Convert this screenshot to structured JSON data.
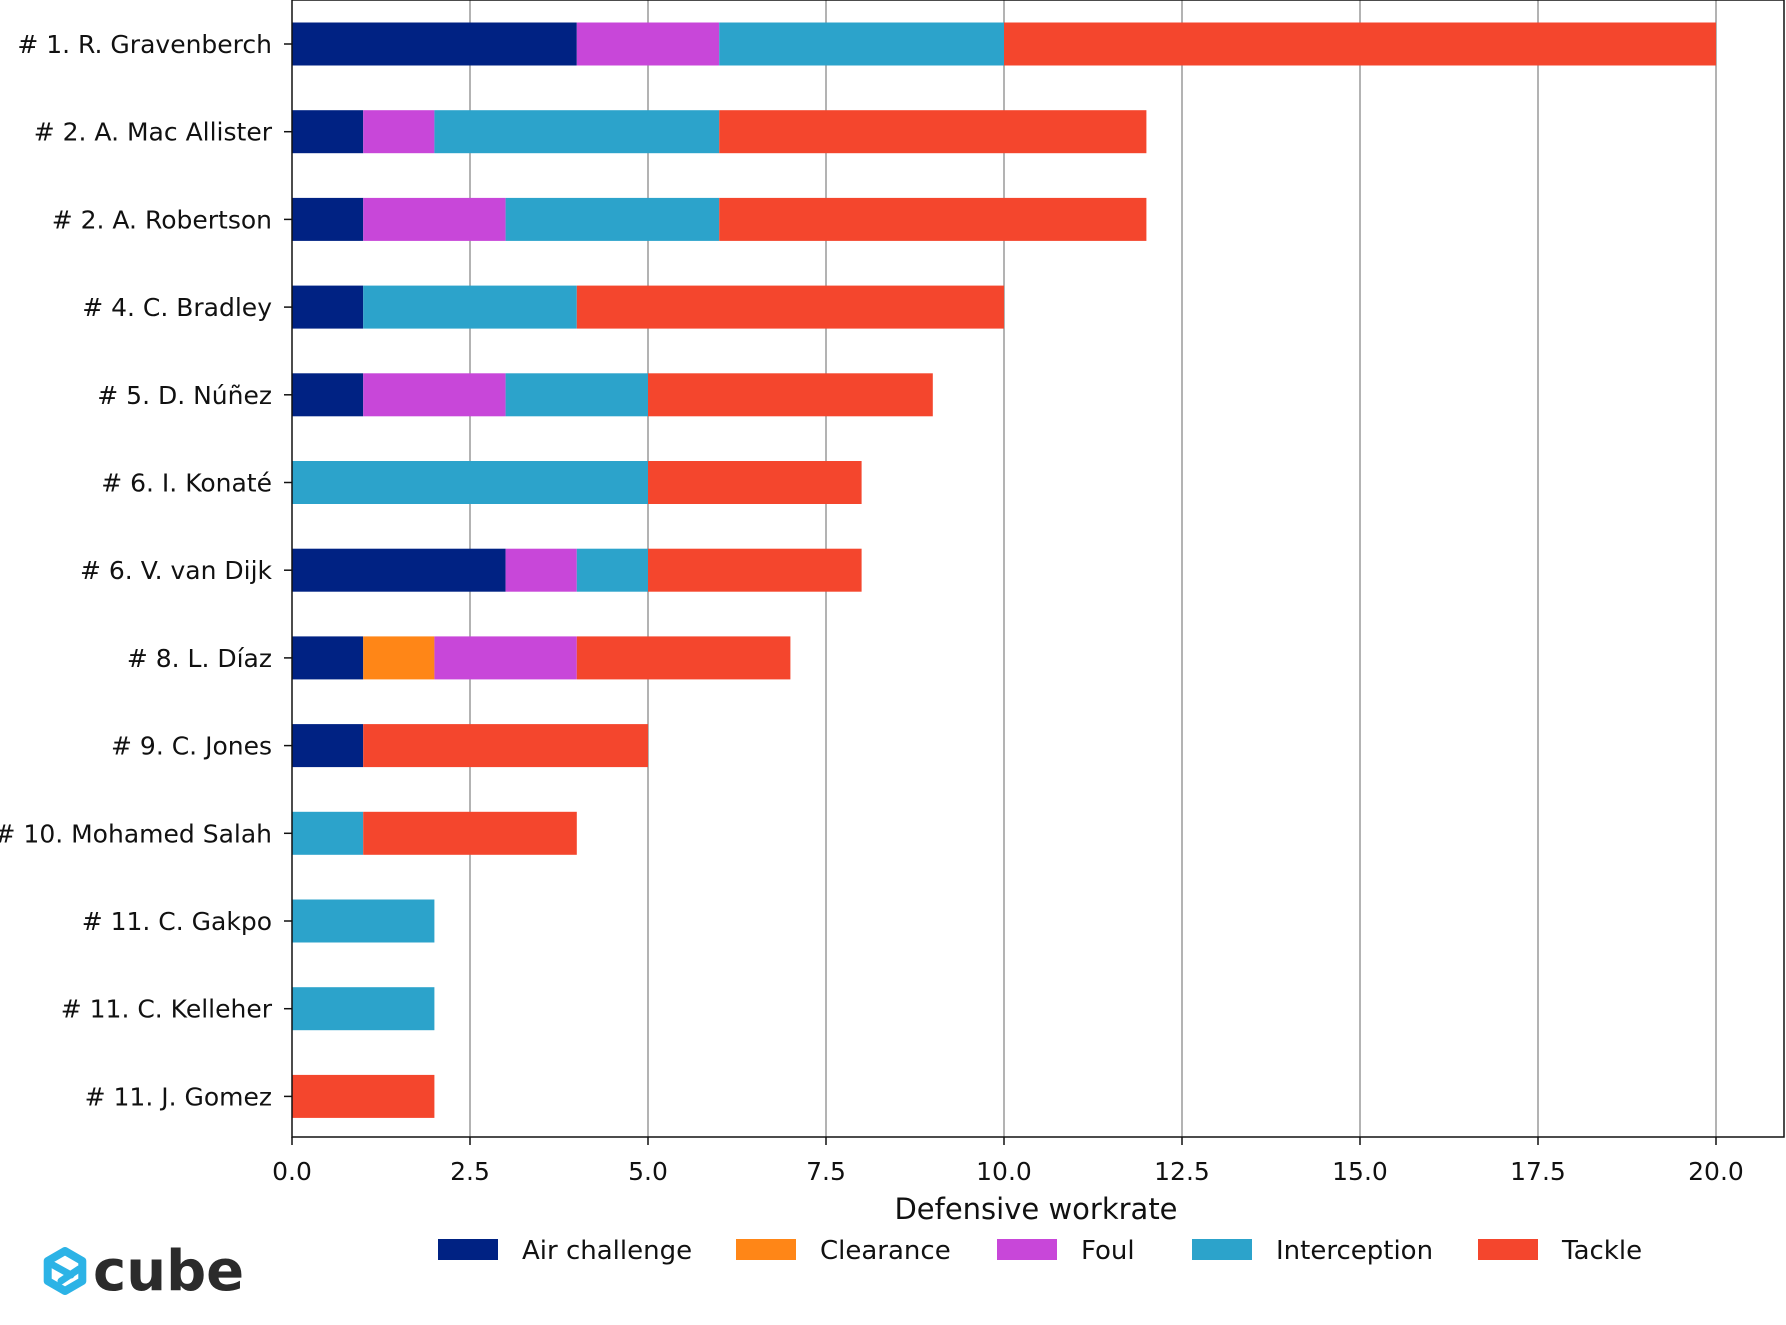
{
  "chart_data": {
    "type": "bar",
    "orientation": "horizontal",
    "stacked": true,
    "xlabel": "Defensive workrate",
    "xlim": [
      0,
      21
    ],
    "xticks": [
      "0.0",
      "2.5",
      "5.0",
      "7.5",
      "10.0",
      "12.5",
      "15.0",
      "17.5",
      "20.0"
    ],
    "grid": "vertical",
    "legend_position": "bottom",
    "categories": [
      "# 1.  R. Gravenberch",
      "# 2.  A. Mac Allister",
      "# 2.  A. Robertson",
      "# 4.  C. Bradley",
      "# 5.  D. Núñez",
      "# 6.  I. Konaté",
      "# 6.  V. van Dijk",
      "# 8.  L. Díaz",
      "# 9.  C. Jones",
      "# 10.  Mohamed Salah",
      "# 11.  C. Gakpo",
      "# 11.  C. Kelleher",
      "# 11.  J. Gomez"
    ],
    "series": [
      {
        "name": "Air challenge",
        "color": "#002283",
        "values": [
          4,
          1,
          1,
          1,
          1,
          0,
          3,
          1,
          1,
          0,
          0,
          0,
          0
        ]
      },
      {
        "name": "Clearance",
        "color": "#ff8617",
        "values": [
          0,
          0,
          0,
          0,
          0,
          0,
          0,
          1,
          0,
          0,
          0,
          0,
          0
        ]
      },
      {
        "name": "Foul",
        "color": "#c847d9",
        "values": [
          2,
          1,
          2,
          0,
          2,
          0,
          1,
          2,
          0,
          0,
          0,
          0,
          0
        ]
      },
      {
        "name": "Interception",
        "color": "#2ca3cb",
        "values": [
          4,
          4,
          3,
          3,
          2,
          5,
          1,
          0,
          0,
          1,
          2,
          2,
          0
        ]
      },
      {
        "name": "Tackle",
        "color": "#f4462d",
        "values": [
          10,
          6,
          6,
          6,
          4,
          3,
          3,
          3,
          4,
          3,
          0,
          0,
          2
        ]
      }
    ]
  },
  "brand": {
    "name": "cube",
    "logo_icon": "cube-logo-icon",
    "logo_color": "#2cb3e6"
  }
}
